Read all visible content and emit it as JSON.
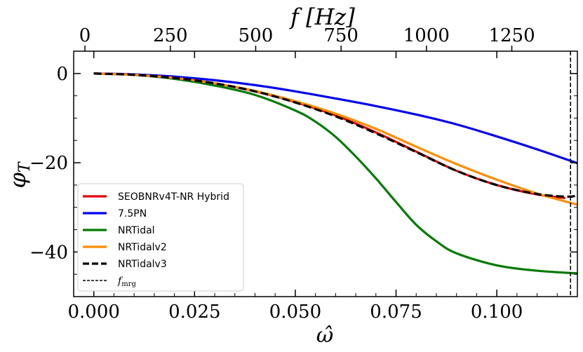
{
  "chart_data": {
    "type": "line",
    "xlabel_top": "f [Hz]",
    "xlabel_bottom": "ω̂",
    "ylabel": "φ",
    "ylabel_sub": "T",
    "xlim": [
      -0.005,
      0.12
    ],
    "ylim": [
      -50,
      5
    ],
    "top_xlim": [
      -33,
      1442
    ],
    "x_ticks": [
      0.0,
      0.025,
      0.05,
      0.075,
      0.1
    ],
    "x_tick_labels": [
      "0.000",
      "0.025",
      "0.050",
      "0.075",
      "0.100"
    ],
    "top_ticks": [
      0,
      250,
      500,
      750,
      1000,
      1250
    ],
    "top_tick_labels": [
      "0",
      "250",
      "500",
      "750",
      "1000",
      "1250"
    ],
    "y_ticks": [
      0,
      -20,
      -40
    ],
    "y_tick_labels": [
      "0",
      "−20",
      "−40"
    ],
    "vline": {
      "x": 0.1183,
      "label": "f",
      "label_sub": "mrg",
      "color": "#000000"
    },
    "series": [
      {
        "name": "SEOBNRv4T-NR Hybrid",
        "color": "#e00000",
        "dash": "solid",
        "x": [
          0,
          0.01,
          0.02,
          0.03,
          0.04,
          0.05,
          0.06,
          0.07,
          0.08,
          0.09,
          0.1,
          0.11,
          0.117
        ],
        "y": [
          0,
          -0.3,
          -1.0,
          -2.2,
          -4.0,
          -6.4,
          -9.4,
          -13.2,
          -17.5,
          -21.8,
          -25.0,
          -27.1,
          -27.9
        ]
      },
      {
        "name": "7.5PN",
        "color": "#0000ee",
        "dash": "solid",
        "x": [
          0,
          0.01,
          0.02,
          0.03,
          0.04,
          0.05,
          0.06,
          0.07,
          0.08,
          0.09,
          0.1,
          0.11,
          0.12
        ],
        "y": [
          0,
          -0.2,
          -0.7,
          -1.5,
          -2.6,
          -4.0,
          -5.6,
          -7.3,
          -9.2,
          -11.4,
          -14.1,
          -17.0,
          -20.1
        ]
      },
      {
        "name": "NRTidal",
        "color": "#007a00",
        "dash": "solid",
        "x": [
          0,
          0.01,
          0.02,
          0.03,
          0.04,
          0.05,
          0.055,
          0.06,
          0.065,
          0.07,
          0.075,
          0.08,
          0.085,
          0.09,
          0.1,
          0.11,
          0.12
        ],
        "y": [
          0,
          -0.3,
          -1.2,
          -2.7,
          -4.8,
          -8.3,
          -10.8,
          -14.2,
          -18.6,
          -23.5,
          -28.8,
          -33.9,
          -37.6,
          -40.3,
          -43.0,
          -44.2,
          -44.8
        ]
      },
      {
        "name": "NRTidalv2",
        "color": "#ff8c00",
        "dash": "solid",
        "x": [
          0,
          0.01,
          0.02,
          0.03,
          0.04,
          0.05,
          0.06,
          0.07,
          0.08,
          0.09,
          0.1,
          0.11,
          0.12
        ],
        "y": [
          0,
          -0.3,
          -1.0,
          -2.2,
          -3.9,
          -6.2,
          -9.0,
          -12.4,
          -16.4,
          -20.3,
          -23.8,
          -26.9,
          -29.4
        ]
      },
      {
        "name": "NRTidalv3",
        "color": "#000000",
        "dash": "dashed",
        "x": [
          0,
          0.01,
          0.02,
          0.03,
          0.04,
          0.05,
          0.06,
          0.07,
          0.08,
          0.09,
          0.1,
          0.11,
          0.118,
          0.12
        ],
        "y": [
          0,
          -0.3,
          -1.0,
          -2.2,
          -4.0,
          -6.5,
          -9.6,
          -13.4,
          -17.6,
          -21.8,
          -25.0,
          -27.0,
          -27.6,
          -27.0
        ]
      }
    ]
  }
}
